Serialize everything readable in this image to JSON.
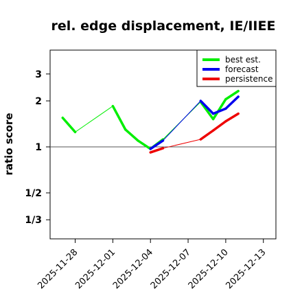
{
  "chart_data": {
    "type": "line",
    "title": "rel. edge displacement, IE/IIEE",
    "ylabel": "ratio score",
    "xlabel": "",
    "y_scale": "log",
    "y_ticks": [
      {
        "label": "1/3",
        "value": 0.3333
      },
      {
        "label": "1/2",
        "value": 0.5
      },
      {
        "label": "1",
        "value": 1
      },
      {
        "label": "2",
        "value": 2
      },
      {
        "label": "3",
        "value": 3
      }
    ],
    "ylim": [
      0.25,
      4.3
    ],
    "xlim": [
      "2025-11-26",
      "2025-12-14"
    ],
    "x_ticks": [
      {
        "label": "2025-11-28",
        "value": "2025-11-28",
        "color": "#000000"
      },
      {
        "label": "2025-12-01",
        "value": "2025-12-01",
        "color": "#000000"
      },
      {
        "label": "2025-12-04",
        "value": "2025-12-04",
        "color": "#228B22"
      },
      {
        "label": "2025-12-07",
        "value": "2025-12-07",
        "color": "#000000"
      },
      {
        "label": "2025-12-10",
        "value": "2025-12-10",
        "color": "#000000"
      },
      {
        "label": "2025-12-13",
        "value": "2025-12-13",
        "color": "#000000"
      }
    ],
    "reference_line": 1,
    "legend_position": "top-right",
    "series": [
      {
        "name": "best est.",
        "color": "#00ee00",
        "points": [
          {
            "x": "2025-11-27",
            "y": 1.55
          },
          {
            "x": "2025-11-28",
            "y": 1.25
          },
          {
            "x": "2025-12-01",
            "y": 1.85
          },
          {
            "x": "2025-12-02",
            "y": 1.3
          },
          {
            "x": "2025-12-03",
            "y": 1.1
          },
          {
            "x": "2025-12-04",
            "y": 0.97
          },
          {
            "x": "2025-12-05",
            "y": 1.12
          },
          {
            "x": "2025-12-08",
            "y": 1.97
          },
          {
            "x": "2025-12-09",
            "y": 1.52
          },
          {
            "x": "2025-12-10",
            "y": 2.05
          },
          {
            "x": "2025-12-11",
            "y": 2.32
          }
        ],
        "thin_segments": [
          [
            1,
            2
          ],
          [
            6,
            7
          ]
        ]
      },
      {
        "name": "forecast",
        "color": "#0000ee",
        "points": [
          {
            "x": "2025-12-04",
            "y": 0.97
          },
          {
            "x": "2025-12-05",
            "y": 1.1
          },
          {
            "x": "2025-12-08",
            "y": 2.0
          },
          {
            "x": "2025-12-09",
            "y": 1.65
          },
          {
            "x": "2025-12-10",
            "y": 1.78
          },
          {
            "x": "2025-12-11",
            "y": 2.13
          }
        ],
        "thin_segments": [
          [
            1,
            2
          ]
        ]
      },
      {
        "name": "persistence",
        "color": "#ee0000",
        "points": [
          {
            "x": "2025-12-04",
            "y": 0.92
          },
          {
            "x": "2025-12-05",
            "y": 0.98
          },
          {
            "x": "2025-12-08",
            "y": 1.12
          },
          {
            "x": "2025-12-09",
            "y": 1.28
          },
          {
            "x": "2025-12-10",
            "y": 1.47
          },
          {
            "x": "2025-12-11",
            "y": 1.65
          }
        ],
        "thin_segments": [
          [
            1,
            2
          ]
        ]
      }
    ]
  }
}
